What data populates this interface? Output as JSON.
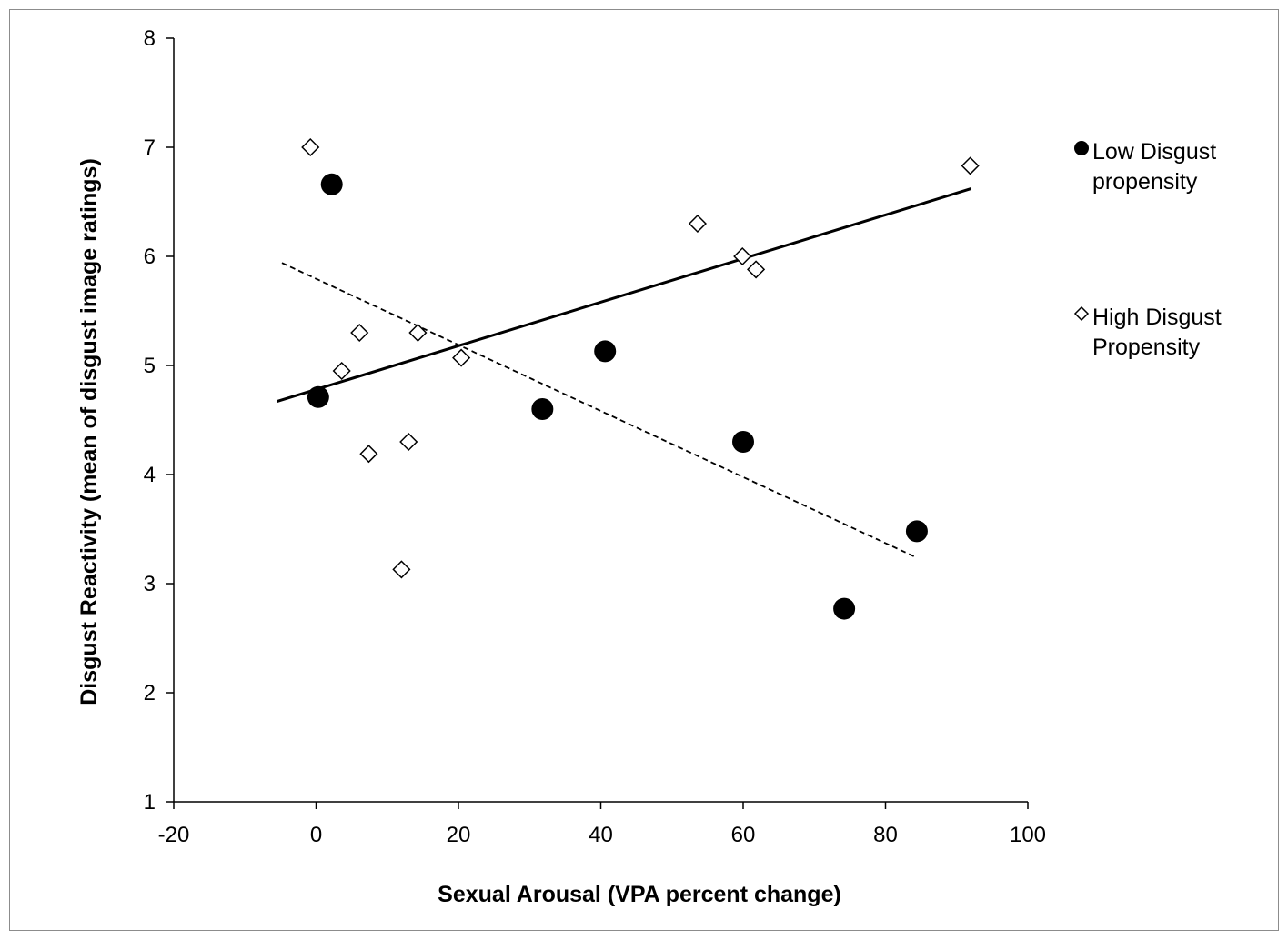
{
  "chart_data": {
    "type": "scatter",
    "xlabel": "Sexual Arousal (VPA percent change)",
    "ylabel": "Disgust Reactivity (mean of disgust image ratings)",
    "xlim": [
      -20,
      100
    ],
    "ylim": [
      1,
      8
    ],
    "x_ticks": [
      "-20",
      "0",
      "20",
      "40",
      "60",
      "80",
      "100"
    ],
    "y_ticks": [
      "1",
      "2",
      "3",
      "4",
      "5",
      "6",
      "7",
      "8"
    ],
    "grid": false,
    "legend_position": "right",
    "series": [
      {
        "name_lines": [
          "Low Disgust",
          "propensity"
        ],
        "marker": "filled-circle",
        "color": "#000000",
        "points": [
          {
            "x": 2.2,
            "y": 6.66
          },
          {
            "x": 0.3,
            "y": 4.71
          },
          {
            "x": 31.8,
            "y": 4.6
          },
          {
            "x": 40.6,
            "y": 5.13
          },
          {
            "x": 60.0,
            "y": 4.3
          },
          {
            "x": 74.2,
            "y": 2.77
          },
          {
            "x": 84.4,
            "y": 3.48
          }
        ],
        "trendline": {
          "style": "solid",
          "x": [
            -5.5,
            92.0
          ],
          "y": [
            4.67,
            6.62
          ]
        }
      },
      {
        "name_lines": [
          "High Disgust",
          "Propensity"
        ],
        "marker": "open-diamond",
        "color": "#000000",
        "points": [
          {
            "x": -0.8,
            "y": 7.0
          },
          {
            "x": 6.1,
            "y": 5.3
          },
          {
            "x": 3.6,
            "y": 4.95
          },
          {
            "x": 7.4,
            "y": 4.19
          },
          {
            "x": 12.0,
            "y": 3.13
          },
          {
            "x": 13.0,
            "y": 4.3
          },
          {
            "x": 14.3,
            "y": 5.3
          },
          {
            "x": 20.4,
            "y": 5.07
          },
          {
            "x": 53.6,
            "y": 6.3
          },
          {
            "x": 59.9,
            "y": 6.0
          },
          {
            "x": 61.8,
            "y": 5.88
          },
          {
            "x": 91.9,
            "y": 6.83
          }
        ],
        "trendline": {
          "style": "dashed",
          "x": [
            -4.8,
            84.0
          ],
          "y": [
            5.94,
            3.25
          ]
        }
      }
    ]
  }
}
